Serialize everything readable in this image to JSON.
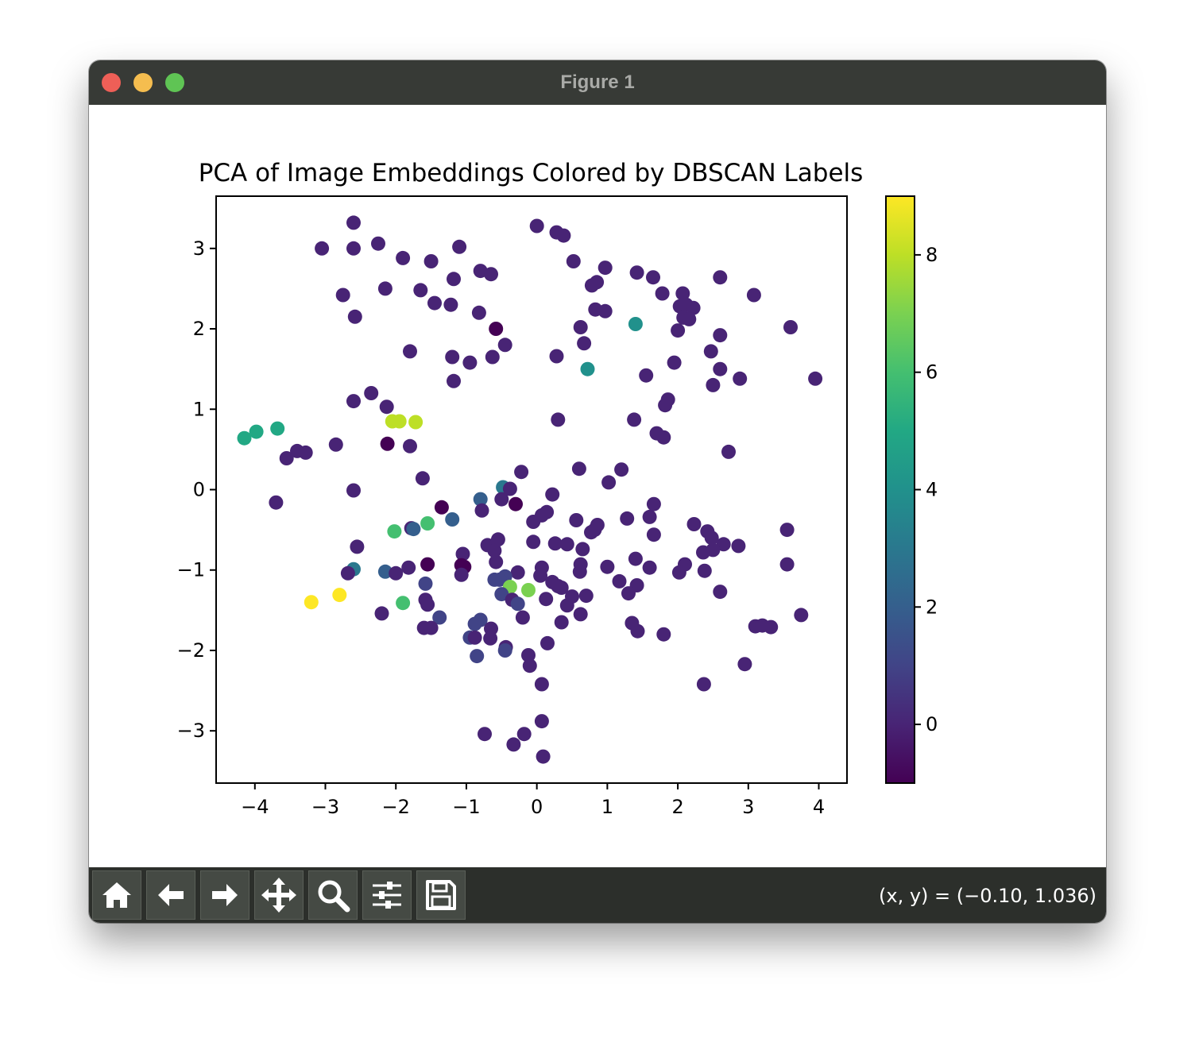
{
  "window": {
    "title": "Figure 1"
  },
  "toolbar": {
    "buttons": [
      {
        "name": "home-button",
        "icon": "home-icon"
      },
      {
        "name": "back-button",
        "icon": "arrow-left-icon"
      },
      {
        "name": "forward-button",
        "icon": "arrow-right-icon"
      },
      {
        "name": "pan-button",
        "icon": "move-icon"
      },
      {
        "name": "zoom-button",
        "icon": "magnifier-icon"
      },
      {
        "name": "configure-subplots-button",
        "icon": "sliders-icon"
      },
      {
        "name": "save-button",
        "icon": "floppy-disk-icon"
      }
    ],
    "coords": "(x, y) = (−0.10, 1.036)"
  },
  "chart_data": {
    "type": "scatter",
    "title": "PCA of Image Embeddings Colored by DBSCAN Labels",
    "xlabel": "",
    "ylabel": "",
    "xlim": [
      -4.55,
      4.4
    ],
    "ylim": [
      -3.65,
      3.65
    ],
    "xticks": [
      -4,
      -3,
      -2,
      -1,
      0,
      1,
      2,
      3,
      4
    ],
    "yticks": [
      -3,
      -2,
      -1,
      0,
      1,
      2,
      3
    ],
    "grid": false,
    "colormap": "viridis",
    "colorbar": {
      "range": [
        -1,
        9
      ],
      "ticks": [
        0,
        2,
        4,
        6,
        8
      ]
    },
    "points": [
      {
        "x": -2.6,
        "y": 3.32,
        "c": 0
      },
      {
        "x": -3.05,
        "y": 3.0,
        "c": 0
      },
      {
        "x": -2.6,
        "y": 3.0,
        "c": 0
      },
      {
        "x": -2.25,
        "y": 3.06,
        "c": 0
      },
      {
        "x": -1.9,
        "y": 2.88,
        "c": 0
      },
      {
        "x": -1.5,
        "y": 2.84,
        "c": 0
      },
      {
        "x": -1.1,
        "y": 3.02,
        "c": 0
      },
      {
        "x": -0.8,
        "y": 2.72,
        "c": 0
      },
      {
        "x": -0.65,
        "y": 2.68,
        "c": 0
      },
      {
        "x": -1.18,
        "y": 2.62,
        "c": 0
      },
      {
        "x": -2.15,
        "y": 2.5,
        "c": 0
      },
      {
        "x": -1.65,
        "y": 2.48,
        "c": 0
      },
      {
        "x": -2.75,
        "y": 2.42,
        "c": 0
      },
      {
        "x": -1.45,
        "y": 2.32,
        "c": 0
      },
      {
        "x": -1.22,
        "y": 2.3,
        "c": 0
      },
      {
        "x": -0.82,
        "y": 2.2,
        "c": 0
      },
      {
        "x": -2.58,
        "y": 2.15,
        "c": 0
      },
      {
        "x": -0.58,
        "y": 2.0,
        "c": -1
      },
      {
        "x": -0.45,
        "y": 1.8,
        "c": 0
      },
      {
        "x": -1.8,
        "y": 1.72,
        "c": 0
      },
      {
        "x": -1.2,
        "y": 1.65,
        "c": 0
      },
      {
        "x": -0.95,
        "y": 1.58,
        "c": 0
      },
      {
        "x": -0.63,
        "y": 1.65,
        "c": 0
      },
      {
        "x": -1.18,
        "y": 1.35,
        "c": 0
      },
      {
        "x": -2.35,
        "y": 1.2,
        "c": 0
      },
      {
        "x": -2.6,
        "y": 1.1,
        "c": 0
      },
      {
        "x": -2.13,
        "y": 1.03,
        "c": 0
      },
      {
        "x": -2.05,
        "y": 0.85,
        "c": 8
      },
      {
        "x": -1.95,
        "y": 0.85,
        "c": 8
      },
      {
        "x": -1.72,
        "y": 0.84,
        "c": 8
      },
      {
        "x": -2.12,
        "y": 0.57,
        "c": -1
      },
      {
        "x": -1.8,
        "y": 0.54,
        "c": 0
      },
      {
        "x": -2.85,
        "y": 0.56,
        "c": 0
      },
      {
        "x": -3.4,
        "y": 0.48,
        "c": 0
      },
      {
        "x": -3.28,
        "y": 0.46,
        "c": 0
      },
      {
        "x": -3.55,
        "y": 0.39,
        "c": 0
      },
      {
        "x": -3.68,
        "y": 0.76,
        "c": 5
      },
      {
        "x": -3.98,
        "y": 0.72,
        "c": 5
      },
      {
        "x": -4.15,
        "y": 0.64,
        "c": 5
      },
      {
        "x": -3.7,
        "y": -0.16,
        "c": 0
      },
      {
        "x": -2.6,
        "y": -0.01,
        "c": 0
      },
      {
        "x": -1.62,
        "y": 0.14,
        "c": 0
      },
      {
        "x": 0.0,
        "y": 3.28,
        "c": 0
      },
      {
        "x": 0.28,
        "y": 3.2,
        "c": 0
      },
      {
        "x": 0.38,
        "y": 3.16,
        "c": 0
      },
      {
        "x": 0.52,
        "y": 2.84,
        "c": 0
      },
      {
        "x": 0.97,
        "y": 2.76,
        "c": 0
      },
      {
        "x": 1.42,
        "y": 2.7,
        "c": 0
      },
      {
        "x": 1.65,
        "y": 2.64,
        "c": 0
      },
      {
        "x": 0.85,
        "y": 2.58,
        "c": 0
      },
      {
        "x": 0.78,
        "y": 2.54,
        "c": 0
      },
      {
        "x": 2.6,
        "y": 2.64,
        "c": 0
      },
      {
        "x": 1.78,
        "y": 2.44,
        "c": 0
      },
      {
        "x": 2.07,
        "y": 2.44,
        "c": 0
      },
      {
        "x": 3.08,
        "y": 2.42,
        "c": 0
      },
      {
        "x": 2.03,
        "y": 2.28,
        "c": 0
      },
      {
        "x": 2.12,
        "y": 2.3,
        "c": 0
      },
      {
        "x": 2.22,
        "y": 2.26,
        "c": 0
      },
      {
        "x": 0.83,
        "y": 2.24,
        "c": 0
      },
      {
        "x": 0.97,
        "y": 2.22,
        "c": 0
      },
      {
        "x": 2.08,
        "y": 2.14,
        "c": 0
      },
      {
        "x": 2.16,
        "y": 2.12,
        "c": 0
      },
      {
        "x": 1.4,
        "y": 2.06,
        "c": 4
      },
      {
        "x": 0.62,
        "y": 2.02,
        "c": 0
      },
      {
        "x": 2.0,
        "y": 1.98,
        "c": 0
      },
      {
        "x": 3.6,
        "y": 2.02,
        "c": 0
      },
      {
        "x": 2.6,
        "y": 1.92,
        "c": 0
      },
      {
        "x": 0.67,
        "y": 1.82,
        "c": 0
      },
      {
        "x": 2.47,
        "y": 1.72,
        "c": 0
      },
      {
        "x": 0.28,
        "y": 1.66,
        "c": 0
      },
      {
        "x": 1.95,
        "y": 1.58,
        "c": 0
      },
      {
        "x": 0.72,
        "y": 1.5,
        "c": 4
      },
      {
        "x": 2.6,
        "y": 1.5,
        "c": 0
      },
      {
        "x": 1.55,
        "y": 1.42,
        "c": 0
      },
      {
        "x": 2.88,
        "y": 1.38,
        "c": 0
      },
      {
        "x": 3.95,
        "y": 1.38,
        "c": 0
      },
      {
        "x": 2.5,
        "y": 1.3,
        "c": 0
      },
      {
        "x": 1.86,
        "y": 1.12,
        "c": 0
      },
      {
        "x": 1.82,
        "y": 1.05,
        "c": 0
      },
      {
        "x": 0.3,
        "y": 0.87,
        "c": 0
      },
      {
        "x": 1.38,
        "y": 0.87,
        "c": 0
      },
      {
        "x": 1.7,
        "y": 0.7,
        "c": 0
      },
      {
        "x": 1.8,
        "y": 0.65,
        "c": 0
      },
      {
        "x": 2.72,
        "y": 0.47,
        "c": 0
      },
      {
        "x": 0.6,
        "y": 0.26,
        "c": 0
      },
      {
        "x": 1.2,
        "y": 0.25,
        "c": 0
      },
      {
        "x": -0.22,
        "y": 0.22,
        "c": 0
      },
      {
        "x": 1.02,
        "y": 0.09,
        "c": 0
      },
      {
        "x": -0.48,
        "y": 0.03,
        "c": 3
      },
      {
        "x": -0.38,
        "y": 0.01,
        "c": 0
      },
      {
        "x": 0.22,
        "y": -0.06,
        "c": 0
      },
      {
        "x": -0.5,
        "y": -0.12,
        "c": 0
      },
      {
        "x": -0.8,
        "y": -0.12,
        "c": 2
      },
      {
        "x": -0.3,
        "y": -0.18,
        "c": -1
      },
      {
        "x": -1.35,
        "y": -0.22,
        "c": -1
      },
      {
        "x": -0.78,
        "y": -0.26,
        "c": 0
      },
      {
        "x": 1.66,
        "y": -0.18,
        "c": 0
      },
      {
        "x": 0.14,
        "y": -0.28,
        "c": 0
      },
      {
        "x": 0.07,
        "y": -0.32,
        "c": 0
      },
      {
        "x": 1.6,
        "y": -0.34,
        "c": 0
      },
      {
        "x": 1.28,
        "y": -0.36,
        "c": 0
      },
      {
        "x": -1.2,
        "y": -0.37,
        "c": 2
      },
      {
        "x": 0.56,
        "y": -0.38,
        "c": 0
      },
      {
        "x": -0.05,
        "y": -0.4,
        "c": 0
      },
      {
        "x": 0.86,
        "y": -0.44,
        "c": 0
      },
      {
        "x": 2.23,
        "y": -0.43,
        "c": 0
      },
      {
        "x": -1.55,
        "y": -0.42,
        "c": 6
      },
      {
        "x": -1.78,
        "y": -0.48,
        "c": 0
      },
      {
        "x": -1.75,
        "y": -0.49,
        "c": 2
      },
      {
        "x": -2.02,
        "y": -0.52,
        "c": 6
      },
      {
        "x": 3.55,
        "y": -0.5,
        "c": 0
      },
      {
        "x": 0.82,
        "y": -0.5,
        "c": 0
      },
      {
        "x": 2.42,
        "y": -0.52,
        "c": 0
      },
      {
        "x": 0.77,
        "y": -0.53,
        "c": 0
      },
      {
        "x": 1.66,
        "y": -0.56,
        "c": 0
      },
      {
        "x": 2.48,
        "y": -0.6,
        "c": 0
      },
      {
        "x": -0.55,
        "y": -0.62,
        "c": 0
      },
      {
        "x": -0.05,
        "y": -0.65,
        "c": 0
      },
      {
        "x": 0.26,
        "y": -0.67,
        "c": 0
      },
      {
        "x": 0.43,
        "y": -0.68,
        "c": 0
      },
      {
        "x": -0.7,
        "y": -0.69,
        "c": 0
      },
      {
        "x": 2.65,
        "y": -0.68,
        "c": 0
      },
      {
        "x": 2.86,
        "y": -0.7,
        "c": 0
      },
      {
        "x": -2.55,
        "y": -0.71,
        "c": 0
      },
      {
        "x": 0.65,
        "y": -0.74,
        "c": 0
      },
      {
        "x": 2.5,
        "y": -0.75,
        "c": 0
      },
      {
        "x": 2.36,
        "y": -0.78,
        "c": 0
      },
      {
        "x": -0.6,
        "y": -0.76,
        "c": 0
      },
      {
        "x": -1.05,
        "y": -0.8,
        "c": 0
      },
      {
        "x": 1.4,
        "y": -0.86,
        "c": 0
      },
      {
        "x": 1.6,
        "y": -0.97,
        "c": 0
      },
      {
        "x": -0.58,
        "y": -0.9,
        "c": 0
      },
      {
        "x": 0.62,
        "y": -0.93,
        "c": 0
      },
      {
        "x": 2.1,
        "y": -0.93,
        "c": 0
      },
      {
        "x": 3.55,
        "y": -0.93,
        "c": 0
      },
      {
        "x": -1.55,
        "y": -0.93,
        "c": -1
      },
      {
        "x": -1.07,
        "y": -0.94,
        "c": -1
      },
      {
        "x": -1.03,
        "y": -0.96,
        "c": -1
      },
      {
        "x": -1.82,
        "y": -0.97,
        "c": 0
      },
      {
        "x": 1.0,
        "y": -0.96,
        "c": 0
      },
      {
        "x": 0.07,
        "y": -0.97,
        "c": 0
      },
      {
        "x": -2.6,
        "y": -0.99,
        "c": 3
      },
      {
        "x": -2.68,
        "y": -1.04,
        "c": 0
      },
      {
        "x": -2.15,
        "y": -1.02,
        "c": 2
      },
      {
        "x": -2.0,
        "y": -1.04,
        "c": 0
      },
      {
        "x": 2.02,
        "y": -1.03,
        "c": 0
      },
      {
        "x": 2.38,
        "y": -1.01,
        "c": 0
      },
      {
        "x": 0.61,
        "y": -1.02,
        "c": 0
      },
      {
        "x": -0.27,
        "y": -1.03,
        "c": 0
      },
      {
        "x": -0.45,
        "y": -1.08,
        "c": 1
      },
      {
        "x": 0.05,
        "y": -1.07,
        "c": 0
      },
      {
        "x": -1.07,
        "y": -1.06,
        "c": 0
      },
      {
        "x": -0.53,
        "y": -1.12,
        "c": 1
      },
      {
        "x": -0.6,
        "y": -1.12,
        "c": 1
      },
      {
        "x": 1.17,
        "y": -1.14,
        "c": 0
      },
      {
        "x": 0.22,
        "y": -1.15,
        "c": 0
      },
      {
        "x": -1.58,
        "y": -1.17,
        "c": 1
      },
      {
        "x": 1.42,
        "y": -1.19,
        "c": 0
      },
      {
        "x": -0.38,
        "y": -1.21,
        "c": 7
      },
      {
        "x": -0.12,
        "y": -1.25,
        "c": 7
      },
      {
        "x": 0.3,
        "y": -1.2,
        "c": 0
      },
      {
        "x": 0.35,
        "y": -1.22,
        "c": 0
      },
      {
        "x": -0.5,
        "y": -1.3,
        "c": 1
      },
      {
        "x": 1.3,
        "y": -1.29,
        "c": 0
      },
      {
        "x": 0.7,
        "y": -1.32,
        "c": 0
      },
      {
        "x": 0.5,
        "y": -1.33,
        "c": 0
      },
      {
        "x": 2.6,
        "y": -1.27,
        "c": 0
      },
      {
        "x": -2.8,
        "y": -1.31,
        "c": 9
      },
      {
        "x": -3.2,
        "y": -1.4,
        "c": 9
      },
      {
        "x": -1.9,
        "y": -1.41,
        "c": 6
      },
      {
        "x": -1.58,
        "y": -1.37,
        "c": 0
      },
      {
        "x": -1.55,
        "y": -1.43,
        "c": 0
      },
      {
        "x": -0.35,
        "y": -1.37,
        "c": 0
      },
      {
        "x": 0.13,
        "y": -1.36,
        "c": 0
      },
      {
        "x": -0.27,
        "y": -1.42,
        "c": 1
      },
      {
        "x": 0.43,
        "y": -1.44,
        "c": 0
      },
      {
        "x": -2.2,
        "y": -1.54,
        "c": 0
      },
      {
        "x": 0.62,
        "y": -1.55,
        "c": 0
      },
      {
        "x": 3.75,
        "y": -1.56,
        "c": 0
      },
      {
        "x": -1.38,
        "y": -1.59,
        "c": 1
      },
      {
        "x": -0.2,
        "y": -1.59,
        "c": 0
      },
      {
        "x": -0.8,
        "y": -1.62,
        "c": 1
      },
      {
        "x": -0.88,
        "y": -1.67,
        "c": 1
      },
      {
        "x": 0.35,
        "y": -1.65,
        "c": 0
      },
      {
        "x": 1.35,
        "y": -1.66,
        "c": 0
      },
      {
        "x": -0.65,
        "y": -1.73,
        "c": 0
      },
      {
        "x": 3.1,
        "y": -1.7,
        "c": 0
      },
      {
        "x": 3.2,
        "y": -1.69,
        "c": 0
      },
      {
        "x": 3.32,
        "y": -1.71,
        "c": 0
      },
      {
        "x": -1.6,
        "y": -1.72,
        "c": 0
      },
      {
        "x": -1.5,
        "y": -1.72,
        "c": 0
      },
      {
        "x": 1.43,
        "y": -1.76,
        "c": 0
      },
      {
        "x": 1.8,
        "y": -1.8,
        "c": 0
      },
      {
        "x": -0.95,
        "y": -1.84,
        "c": 1
      },
      {
        "x": -0.88,
        "y": -1.84,
        "c": 0
      },
      {
        "x": -0.66,
        "y": -1.85,
        "c": 0
      },
      {
        "x": 0.15,
        "y": -1.91,
        "c": 0
      },
      {
        "x": -0.44,
        "y": -1.96,
        "c": 0
      },
      {
        "x": -0.45,
        "y": -2.0,
        "c": 1
      },
      {
        "x": -0.85,
        "y": -2.07,
        "c": 1
      },
      {
        "x": -0.12,
        "y": -2.06,
        "c": 0
      },
      {
        "x": -0.1,
        "y": -2.19,
        "c": 0
      },
      {
        "x": 2.95,
        "y": -2.17,
        "c": 0
      },
      {
        "x": 0.07,
        "y": -2.42,
        "c": 0
      },
      {
        "x": 2.37,
        "y": -2.42,
        "c": 0
      },
      {
        "x": 0.07,
        "y": -2.88,
        "c": 0
      },
      {
        "x": -0.74,
        "y": -3.04,
        "c": 0
      },
      {
        "x": -0.18,
        "y": -3.04,
        "c": 0
      },
      {
        "x": -0.33,
        "y": -3.17,
        "c": 0
      },
      {
        "x": 0.09,
        "y": -3.32,
        "c": 0
      }
    ]
  }
}
